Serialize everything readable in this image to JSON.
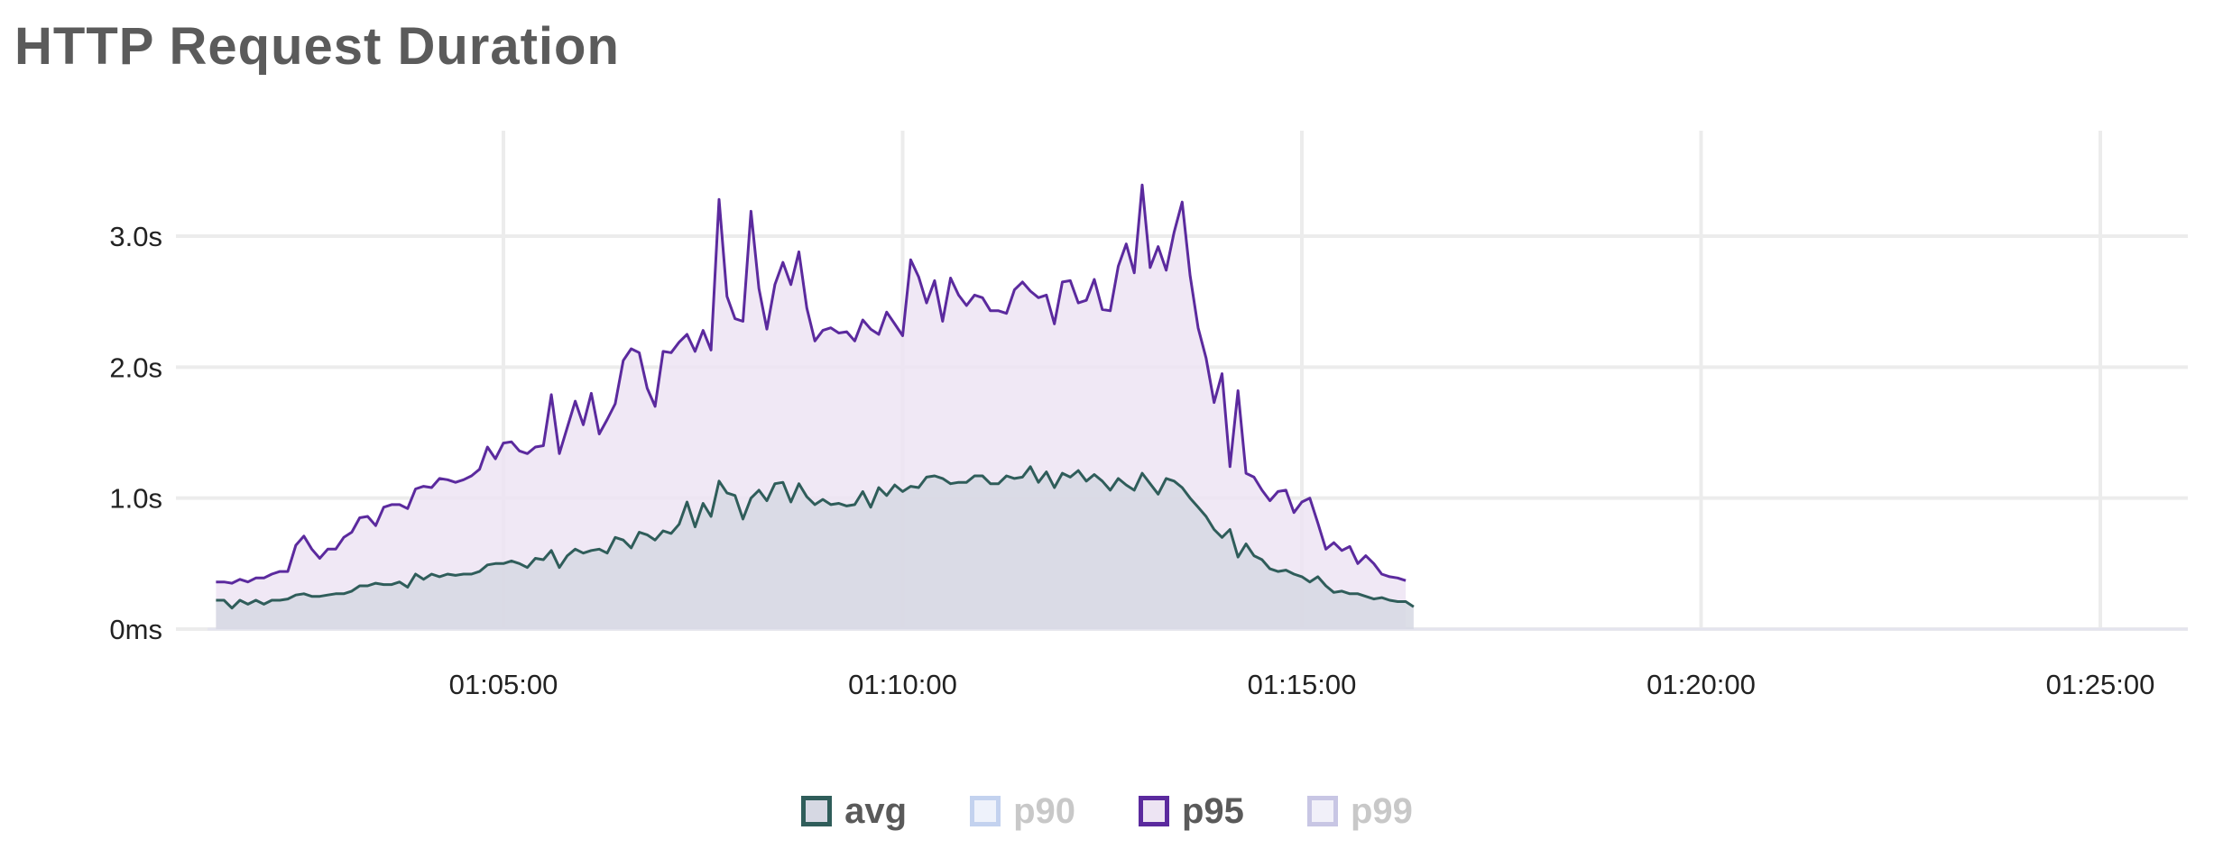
{
  "title": "HTTP Request Duration",
  "chart_data": {
    "type": "area",
    "title": "HTTP Request Duration",
    "xlabel": "",
    "ylabel": "",
    "x_unit": "time",
    "x_start": "01:01:24",
    "x_step_seconds": 6,
    "x_ticks": [
      "01:05:00",
      "01:10:00",
      "01:15:00",
      "01:20:00",
      "01:25:00"
    ],
    "y_ticks": [
      "0ms",
      "1.0s",
      "2.0s",
      "3.0s"
    ],
    "ylim": [
      0,
      3.5
    ],
    "grid": true,
    "legend_position": "bottom",
    "series": [
      {
        "name": "avg",
        "color": "#2f5d5a",
        "fill": "#d6d8e3",
        "visible": true,
        "values": [
          0.22,
          0.22,
          0.16,
          0.22,
          0.19,
          0.22,
          0.19,
          0.22,
          0.22,
          0.23,
          0.26,
          0.27,
          0.25,
          0.25,
          0.26,
          0.27,
          0.27,
          0.29,
          0.33,
          0.33,
          0.35,
          0.34,
          0.34,
          0.36,
          0.32,
          0.42,
          0.38,
          0.42,
          0.4,
          0.42,
          0.41,
          0.42,
          0.42,
          0.44,
          0.49,
          0.5,
          0.5,
          0.52,
          0.5,
          0.47,
          0.54,
          0.53,
          0.6,
          0.47,
          0.56,
          0.61,
          0.58,
          0.6,
          0.61,
          0.58,
          0.7,
          0.68,
          0.62,
          0.74,
          0.72,
          0.68,
          0.75,
          0.73,
          0.8,
          0.97,
          0.78,
          0.96,
          0.86,
          1.13,
          1.04,
          1.02,
          0.84,
          1.0,
          1.06,
          0.98,
          1.11,
          1.12,
          0.97,
          1.11,
          1.01,
          0.95,
          0.99,
          0.95,
          0.96,
          0.94,
          0.95,
          1.05,
          0.93,
          1.08,
          1.02,
          1.1,
          1.05,
          1.09,
          1.08,
          1.16,
          1.17,
          1.15,
          1.11,
          1.12,
          1.12,
          1.17,
          1.17,
          1.11,
          1.11,
          1.17,
          1.15,
          1.16,
          1.24,
          1.12,
          1.2,
          1.08,
          1.19,
          1.16,
          1.21,
          1.13,
          1.18,
          1.13,
          1.06,
          1.15,
          1.1,
          1.06,
          1.19,
          1.11,
          1.03,
          1.15,
          1.13,
          1.08,
          1.0,
          0.93,
          0.86,
          0.76,
          0.7,
          0.76,
          0.55,
          0.65,
          0.56,
          0.53,
          0.46,
          0.44,
          0.45,
          0.42,
          0.4,
          0.36,
          0.4,
          0.33,
          0.28,
          0.29,
          0.27,
          0.27,
          0.25,
          0.23,
          0.24,
          0.22,
          0.21,
          0.21,
          0.17
        ]
      },
      {
        "name": "p90",
        "color": "#c3d2ef",
        "fill": "#eef2fb",
        "visible": false,
        "values": []
      },
      {
        "name": "p95",
        "color": "#5b2a9e",
        "fill": "#ede4f3",
        "visible": true,
        "values": [
          0.36,
          0.36,
          0.35,
          0.38,
          0.36,
          0.39,
          0.39,
          0.42,
          0.44,
          0.44,
          0.64,
          0.71,
          0.61,
          0.54,
          0.61,
          0.61,
          0.7,
          0.74,
          0.85,
          0.86,
          0.79,
          0.93,
          0.95,
          0.95,
          0.92,
          1.07,
          1.09,
          1.08,
          1.15,
          1.14,
          1.12,
          1.14,
          1.17,
          1.22,
          1.39,
          1.3,
          1.42,
          1.43,
          1.36,
          1.34,
          1.39,
          1.4,
          1.79,
          1.34,
          1.54,
          1.74,
          1.56,
          1.8,
          1.49,
          1.6,
          1.72,
          2.05,
          2.14,
          2.11,
          1.84,
          1.7,
          2.12,
          2.11,
          2.19,
          2.25,
          2.12,
          2.28,
          2.13,
          3.28,
          2.54,
          2.37,
          2.35,
          3.19,
          2.6,
          2.29,
          2.63,
          2.8,
          2.63,
          2.88,
          2.45,
          2.2,
          2.28,
          2.3,
          2.26,
          2.27,
          2.2,
          2.36,
          2.29,
          2.25,
          2.42,
          2.33,
          2.24,
          2.82,
          2.69,
          2.49,
          2.66,
          2.35,
          2.68,
          2.55,
          2.47,
          2.55,
          2.53,
          2.43,
          2.43,
          2.41,
          2.59,
          2.65,
          2.58,
          2.53,
          2.55,
          2.33,
          2.65,
          2.66,
          2.49,
          2.51,
          2.67,
          2.44,
          2.43,
          2.77,
          2.94,
          2.72,
          3.39,
          2.76,
          2.92,
          2.74,
          3.03,
          3.26,
          2.7,
          2.3,
          2.07,
          1.73,
          1.95,
          1.24,
          1.82,
          1.19,
          1.16,
          1.06,
          0.98,
          1.05,
          1.06,
          0.89,
          0.97,
          1.0,
          0.81,
          0.61,
          0.66,
          0.6,
          0.63,
          0.5,
          0.56,
          0.5,
          0.42,
          0.4,
          0.39,
          0.37
        ]
      },
      {
        "name": "p99",
        "color": "#c8c6e4",
        "fill": "#f1f0f9",
        "visible": false,
        "values": []
      }
    ]
  }
}
